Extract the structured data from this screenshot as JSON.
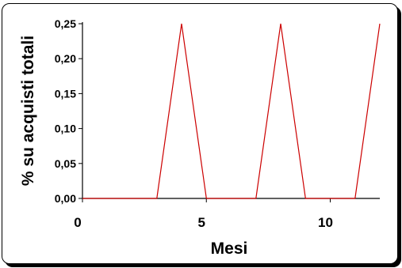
{
  "chart_data": {
    "type": "line",
    "xlabel": "Mesi",
    "ylabel": "% su acquisti totali",
    "xlim": [
      0,
      12
    ],
    "ylim": [
      0,
      0.25
    ],
    "x_ticks": [
      0,
      5,
      10
    ],
    "x_tick_labels": [
      "0",
      "5",
      "10"
    ],
    "y_ticks": [
      0,
      0.05,
      0.1,
      0.15,
      0.2,
      0.25
    ],
    "y_tick_labels": [
      "0,00",
      "0,05",
      "0,10",
      "0,15",
      "0,20",
      "0,25"
    ],
    "grid": false,
    "series": [
      {
        "color": "#cc0000",
        "x": [
          0,
          1,
          2,
          3,
          4,
          5,
          6,
          7,
          8,
          9,
          10,
          11,
          12
        ],
        "y": [
          0,
          0,
          0,
          0,
          0.25,
          0,
          0,
          0,
          0.25,
          0,
          0,
          0,
          0.25
        ]
      }
    ]
  }
}
